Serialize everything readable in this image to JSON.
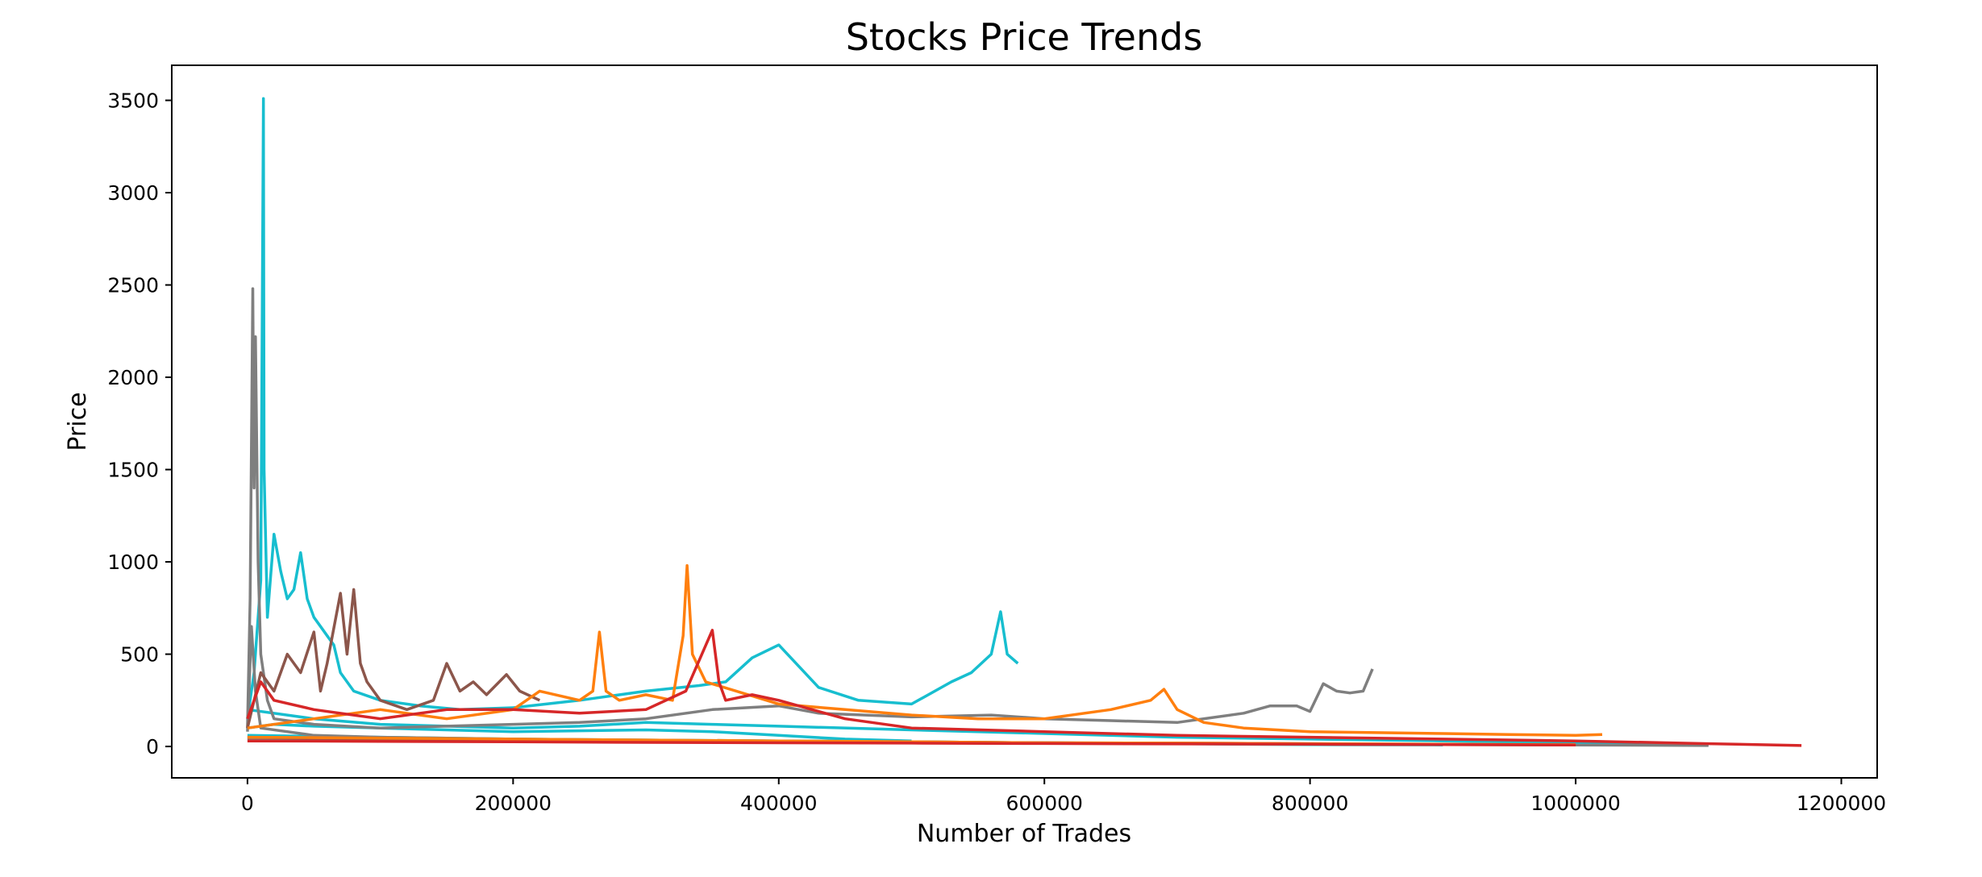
{
  "chart_data": {
    "type": "line",
    "title": "Stocks Price Trends",
    "xlabel": "Number of Trades",
    "ylabel": "Price",
    "xlim": [
      -57000,
      1227000
    ],
    "ylim": [
      -170,
      3690
    ],
    "x_ticks": [
      0,
      200000,
      400000,
      600000,
      800000,
      1000000,
      1200000
    ],
    "x_tick_labels": [
      "0",
      "200000",
      "400000",
      "600000",
      "800000",
      "1000000",
      "1200000"
    ],
    "y_ticks": [
      0,
      500,
      1000,
      1500,
      2000,
      2500,
      3000,
      3500
    ],
    "y_tick_labels": [
      "0",
      "500",
      "1000",
      "1500",
      "2000",
      "2500",
      "3000",
      "3500"
    ],
    "grid": false,
    "legend": "none",
    "colors": [
      "#17becf",
      "#7f7f7f",
      "#8c564b",
      "#ff7f0e",
      "#d62728"
    ],
    "series": [
      {
        "color": "#17becf",
        "x": [
          0,
          5000,
          10000,
          12000,
          12500,
          15000,
          20000,
          25000,
          30000,
          35000,
          40000,
          42000,
          45000,
          50000,
          55000,
          60000,
          65000,
          70000,
          80000,
          100000,
          130000,
          160000,
          200000,
          250000,
          300000,
          340000,
          360000,
          380000,
          400000,
          430000,
          460000,
          500000,
          530000,
          545000,
          560000,
          567000,
          572000,
          580000
        ],
        "y": [
          150,
          400,
          900,
          3510,
          1500,
          700,
          1150,
          950,
          800,
          850,
          1050,
          950,
          800,
          700,
          650,
          600,
          550,
          400,
          300,
          250,
          220,
          200,
          210,
          250,
          300,
          330,
          350,
          480,
          550,
          320,
          250,
          230,
          350,
          400,
          500,
          730,
          500,
          450
        ]
      },
      {
        "color": "#17becf",
        "x": [
          0,
          50000,
          100000,
          150000,
          200000,
          250000,
          300000,
          350000,
          400000,
          500000,
          600000,
          700000,
          800000,
          900000,
          1000000,
          1100000
        ],
        "y": [
          200,
          150,
          120,
          110,
          100,
          110,
          130,
          120,
          110,
          90,
          70,
          50,
          40,
          30,
          20,
          10
        ]
      },
      {
        "color": "#17becf",
        "x": [
          0,
          20000,
          50000,
          100000,
          150000,
          200000,
          250000,
          300000,
          350000,
          400000,
          450000,
          500000
        ],
        "y": [
          100,
          120,
          110,
          100,
          90,
          80,
          85,
          90,
          80,
          60,
          40,
          30
        ]
      },
      {
        "color": "#17becf",
        "x": [
          0,
          50000,
          100000,
          200000,
          300000,
          400000,
          500000,
          600000,
          700000,
          800000,
          900000
        ],
        "y": [
          60,
          55,
          50,
          40,
          35,
          30,
          25,
          20,
          15,
          10,
          8
        ]
      },
      {
        "color": "#7f7f7f",
        "x": [
          0,
          2000,
          4000,
          5000,
          6000,
          8000,
          10000,
          15000,
          20000,
          50000,
          100000,
          150000,
          200000,
          250000,
          300000,
          350000,
          400000,
          430000,
          500000,
          560000,
          600000,
          650000,
          700000,
          750000,
          770000,
          790000,
          800000,
          810000,
          820000,
          830000,
          840000,
          847000
        ],
        "y": [
          100,
          800,
          2480,
          1400,
          2220,
          1000,
          500,
          250,
          150,
          120,
          100,
          110,
          120,
          130,
          150,
          200,
          220,
          180,
          160,
          170,
          150,
          140,
          130,
          180,
          220,
          220,
          190,
          340,
          300,
          290,
          300,
          420
        ]
      },
      {
        "color": "#7f7f7f",
        "x": [
          0,
          3000,
          6000,
          10000,
          50000,
          100000,
          200000,
          300000,
          400000,
          500000,
          600000,
          700000,
          800000,
          900000,
          1000000,
          1100000
        ],
        "y": [
          80,
          650,
          300,
          100,
          60,
          50,
          40,
          35,
          30,
          25,
          20,
          15,
          12,
          10,
          8,
          5
        ]
      },
      {
        "color": "#7f7f7f",
        "x": [
          0,
          50000,
          100000,
          200000,
          300000,
          400000,
          500000,
          600000,
          700000
        ],
        "y": [
          40,
          35,
          30,
          28,
          25,
          22,
          20,
          18,
          15
        ]
      },
      {
        "color": "#8c564b",
        "x": [
          0,
          10000,
          20000,
          30000,
          40000,
          50000,
          55000,
          60000,
          70000,
          75000,
          80000,
          85000,
          90000,
          100000,
          120000,
          140000,
          150000,
          160000,
          170000,
          180000,
          195000,
          205000,
          220000
        ],
        "y": [
          100,
          400,
          300,
          500,
          400,
          620,
          300,
          450,
          830,
          500,
          850,
          450,
          350,
          250,
          200,
          250,
          450,
          300,
          350,
          280,
          390,
          300,
          250
        ]
      },
      {
        "color": "#8c564b",
        "x": [
          0,
          50000,
          100000,
          200000,
          300000,
          400000,
          500000,
          600000,
          700000,
          800000,
          900000
        ],
        "y": [
          50,
          45,
          40,
          35,
          30,
          28,
          25,
          20,
          18,
          15,
          12
        ]
      },
      {
        "color": "#ff7f0e",
        "x": [
          0,
          50000,
          100000,
          150000,
          200000,
          220000,
          250000,
          260000,
          265000,
          270000,
          280000,
          300000,
          320000,
          328000,
          331000,
          335000,
          345000,
          400000,
          450000,
          500000,
          550000,
          600000,
          650000,
          680000,
          690000,
          700000,
          720000,
          750000,
          800000,
          850000,
          900000,
          950000,
          1000000,
          1020000
        ],
        "y": [
          100,
          150,
          200,
          150,
          200,
          300,
          250,
          300,
          620,
          300,
          250,
          280,
          250,
          600,
          980,
          500,
          350,
          230,
          200,
          170,
          150,
          150,
          200,
          250,
          310,
          200,
          130,
          100,
          80,
          75,
          70,
          65,
          60,
          65
        ]
      },
      {
        "color": "#ff7f0e",
        "x": [
          0,
          50000,
          100000,
          200000,
          300000,
          400000,
          500000,
          600000,
          700000,
          800000,
          900000,
          1000000
        ],
        "y": [
          50,
          48,
          45,
          40,
          35,
          30,
          25,
          20,
          18,
          15,
          12,
          10
        ]
      },
      {
        "color": "#d62728",
        "x": [
          0,
          10000,
          20000,
          50000,
          100000,
          150000,
          200000,
          250000,
          300000,
          330000,
          350000,
          355000,
          360000,
          380000,
          400000,
          450000,
          500000,
          600000,
          700000,
          800000,
          900000,
          1000000,
          1100000,
          1170000
        ],
        "y": [
          150,
          350,
          250,
          200,
          150,
          200,
          200,
          180,
          200,
          300,
          630,
          350,
          250,
          280,
          250,
          150,
          100,
          80,
          60,
          50,
          40,
          30,
          15,
          5
        ]
      },
      {
        "color": "#d62728",
        "x": [
          0,
          100000,
          200000,
          300000,
          400000,
          500000,
          600000,
          700000,
          800000,
          900000,
          1000000
        ],
        "y": [
          30,
          28,
          25,
          22,
          20,
          18,
          16,
          14,
          12,
          10,
          8
        ]
      }
    ]
  }
}
